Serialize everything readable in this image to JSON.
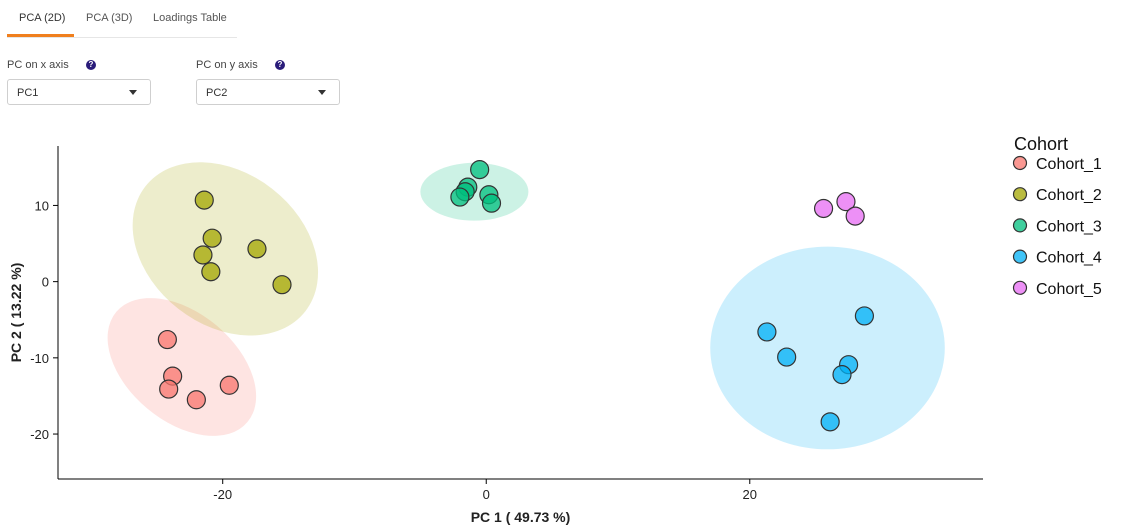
{
  "tabs": [
    {
      "label": "PCA (2D)",
      "active": true
    },
    {
      "label": "PCA (3D)",
      "active": false
    },
    {
      "label": "Loadings Table",
      "active": false
    }
  ],
  "controls": {
    "x_label": "PC on x axis",
    "y_label": "PC on y axis",
    "x_value": "PC1",
    "y_value": "PC2",
    "help_glyph": "?"
  },
  "chart_data": {
    "type": "scatter",
    "xlabel": "PC 1 ( 49.73 %)",
    "ylabel": "PC 2 ( 13.22 %)",
    "xlim": [
      -32.5,
      37.7
    ],
    "ylim": [
      -25.9,
      17.8
    ],
    "x_ticks": [
      -20,
      0,
      20
    ],
    "y_ticks": [
      -20,
      -10,
      0,
      10
    ],
    "legend_title": "Cohort",
    "legend_position": "right",
    "series": [
      {
        "name": "Cohort_1",
        "color": "#f8766d",
        "ellipse": {
          "cx": -23.1,
          "cy": -11.2,
          "rx": 6.5,
          "ry": 7.1,
          "angle": 40
        },
        "points": [
          [
            -24.2,
            -7.6
          ],
          [
            -23.8,
            -12.4
          ],
          [
            -24.1,
            -14.1
          ],
          [
            -22.0,
            -15.5
          ],
          [
            -19.5,
            -13.6
          ]
        ]
      },
      {
        "name": "Cohort_2",
        "color": "#a3a500",
        "ellipse": {
          "cx": -19.8,
          "cy": 4.3,
          "rx": 7.7,
          "ry": 10.0,
          "angle": 38
        },
        "points": [
          [
            -21.4,
            10.7
          ],
          [
            -20.8,
            5.7
          ],
          [
            -21.5,
            3.5
          ],
          [
            -20.9,
            1.3
          ],
          [
            -17.4,
            4.3
          ],
          [
            -15.5,
            -0.4
          ]
        ]
      },
      {
        "name": "Cohort_3",
        "color": "#00bf7d",
        "ellipse": {
          "cx": -0.9,
          "cy": 11.8,
          "rx": 4.1,
          "ry": 3.8,
          "angle": 0
        },
        "points": [
          [
            -0.5,
            14.7
          ],
          [
            -1.4,
            12.4
          ],
          [
            -1.6,
            11.8
          ],
          [
            -2.0,
            11.1
          ],
          [
            0.2,
            11.4
          ],
          [
            0.4,
            10.3
          ]
        ]
      },
      {
        "name": "Cohort_4",
        "color": "#00b0f6",
        "ellipse": {
          "cx": 25.9,
          "cy": -8.7,
          "rx": 8.9,
          "ry": 13.3,
          "angle": 0
        },
        "points": [
          [
            28.7,
            -4.5
          ],
          [
            21.3,
            -6.6
          ],
          [
            22.8,
            -9.9
          ],
          [
            27.5,
            -10.9
          ],
          [
            27.0,
            -12.2
          ],
          [
            26.1,
            -18.4
          ]
        ]
      },
      {
        "name": "Cohort_5",
        "color": "#e76bf3",
        "points": [
          [
            25.6,
            9.6
          ],
          [
            27.3,
            10.5
          ],
          [
            28.0,
            8.6
          ]
        ]
      }
    ]
  }
}
